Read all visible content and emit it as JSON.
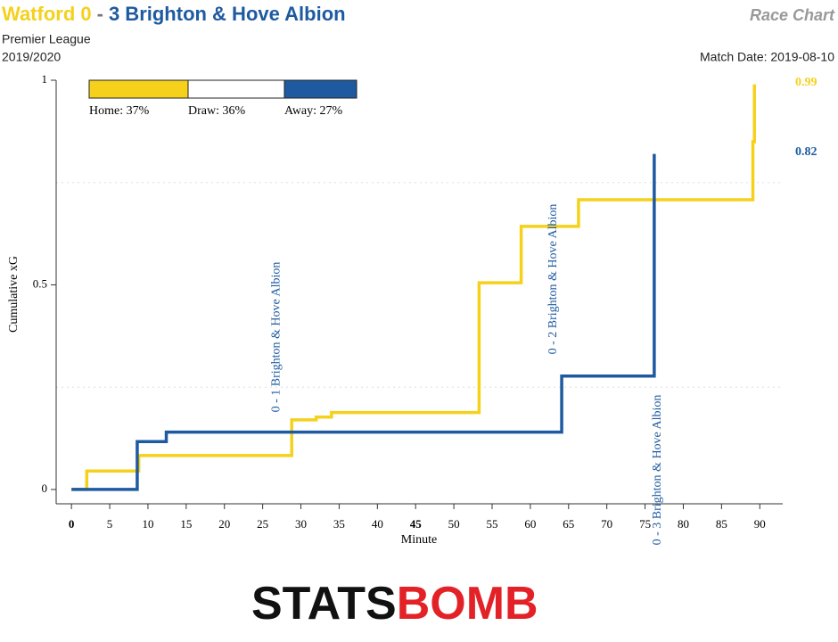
{
  "chart_data": {
    "type": "step",
    "title_home": "Watford 0",
    "title_sep": "-",
    "title_away": "3 Brighton & Hove Albion",
    "chart_name": "Race Chart",
    "competition": "Premier League",
    "season": "2019/2020",
    "match_date": "Match Date: 2019-08-10",
    "xlabel": "Minute",
    "ylabel": "Cumulative xG",
    "xlim": [
      -2,
      93
    ],
    "ylim": [
      -0.035,
      1
    ],
    "xticks": [
      0,
      5,
      10,
      15,
      20,
      25,
      30,
      35,
      40,
      45,
      50,
      55,
      60,
      65,
      70,
      75,
      80,
      85,
      90
    ],
    "bold_xticks": [
      0,
      45
    ],
    "yticks": [
      0,
      0.5,
      1
    ],
    "ygrid": [
      0.25,
      0.75
    ],
    "series": [
      {
        "name": "Watford",
        "color": "#f5d11c",
        "x": [
          0,
          2,
          8.8,
          28.8,
          32,
          34,
          53.3,
          58.8,
          66.3,
          89.1,
          89.3
        ],
        "values": [
          0,
          0.045,
          0.083,
          0.17,
          0.177,
          0.188,
          0.505,
          0.643,
          0.708,
          0.85,
          0.99
        ]
      },
      {
        "name": "Brighton & Hove Albion",
        "color": "#1e5aa0",
        "x": [
          0,
          8.6,
          12.4,
          64.1,
          76.2
        ],
        "values": [
          0,
          0.117,
          0.14,
          0.277,
          0.82
        ]
      }
    ],
    "annotations": [
      {
        "x": 27.3,
        "text": "0 - 1 Brighton & Hove Albion"
      },
      {
        "x": 63.5,
        "text": "0 - 2 Brighton & Hove Albion"
      },
      {
        "x": 77.1,
        "text": "0 - 3 Brighton & Hove Albion"
      }
    ],
    "win_probabilities": {
      "values": [
        37,
        36,
        27
      ],
      "value_labels": [
        "Home: 37%",
        "Draw: 36%",
        "Away: 27%"
      ],
      "colors": [
        "#f5d11c",
        "#ffffff",
        "#1e5aa0"
      ]
    },
    "logo": [
      "STATS",
      "BOMB"
    ]
  }
}
